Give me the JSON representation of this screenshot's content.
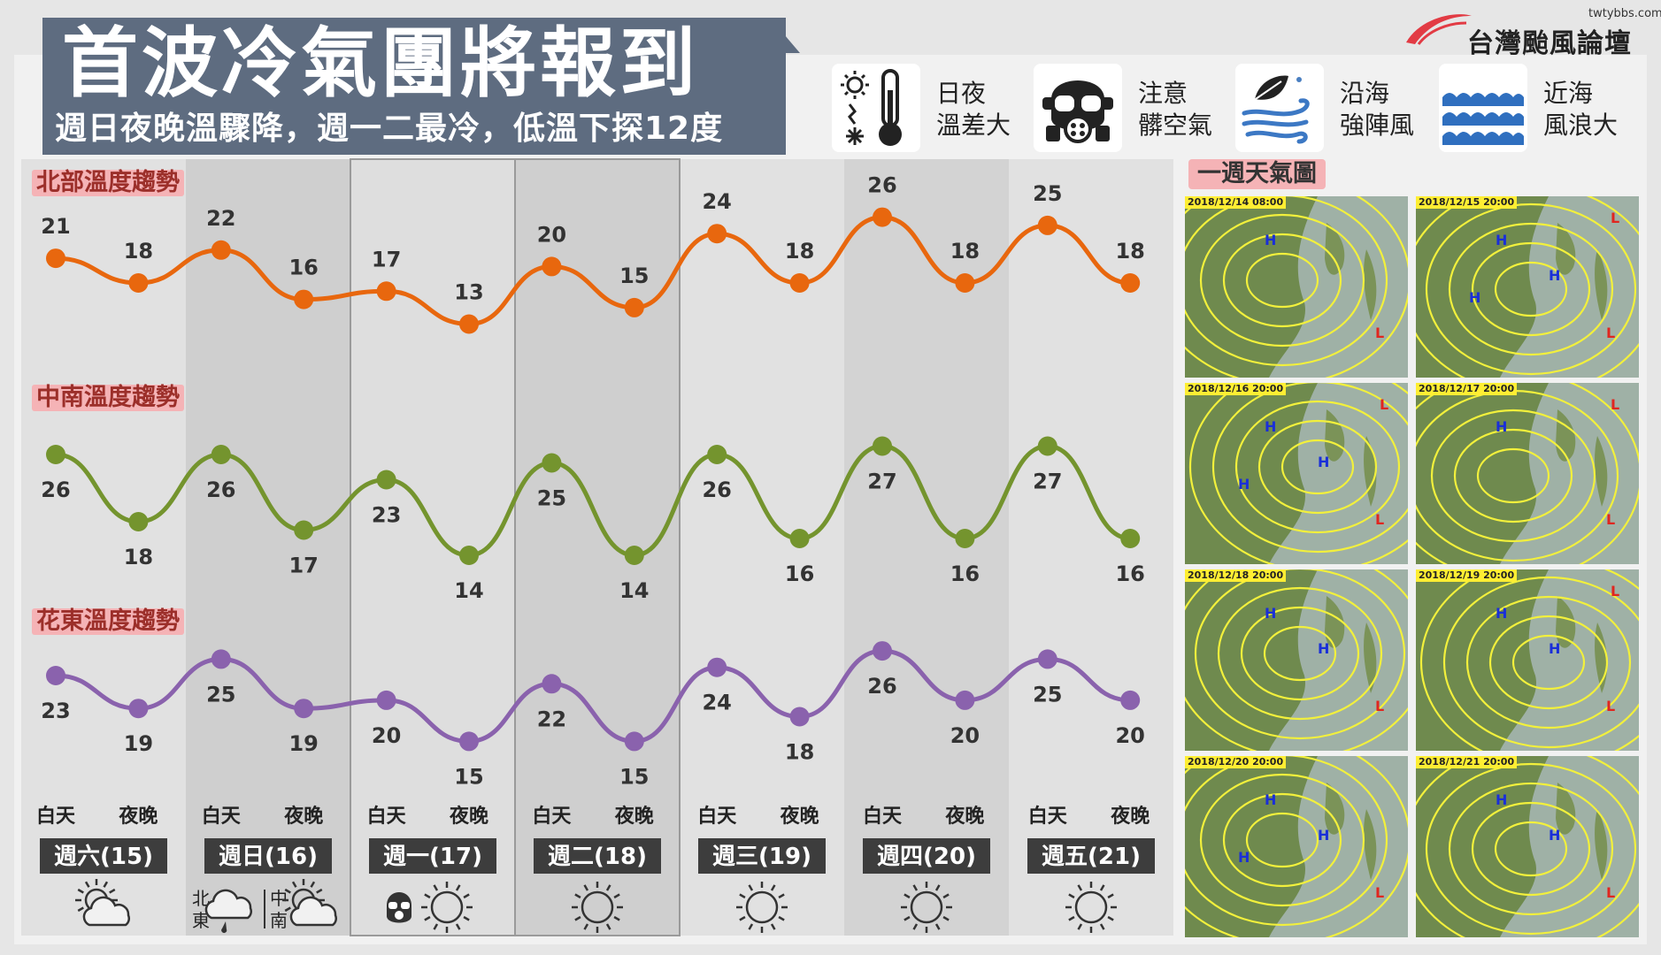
{
  "header": {
    "title": "首波冷氣團將報到",
    "subtitle": "週日夜晚溫驟降，週一二最冷，低溫下探12度",
    "site": "twtybbs.com",
    "logo_name": "台灣颱風論壇"
  },
  "legend": [
    {
      "icon": "thermometer-sun-snow-icon",
      "label_lines": [
        "日夜",
        "溫差大"
      ]
    },
    {
      "icon": "gas-mask-icon",
      "label_lines": [
        "注意",
        "髒空氣"
      ]
    },
    {
      "icon": "wind-leaf-icon",
      "label_lines": [
        "沿海",
        "強陣風"
      ]
    },
    {
      "icon": "waves-icon",
      "label_lines": [
        "近海",
        "風浪大"
      ]
    }
  ],
  "colors": {
    "north": "#e8670e",
    "central_south": "#74942e",
    "east": "#8a62ad",
    "label_pink": "#f5b3b6",
    "header_bg": "#5e6c80"
  },
  "chart_data": {
    "type": "line",
    "categories": [
      "白天",
      "夜晚",
      "白天",
      "夜晚",
      "白天",
      "夜晚",
      "白天",
      "夜晚",
      "白天",
      "夜晚",
      "白天",
      "夜晚",
      "白天",
      "夜晚"
    ],
    "days": [
      "週六(15)",
      "週日(16)",
      "週一(17)",
      "週二(18)",
      "週三(19)",
      "週四(20)",
      "週五(21)"
    ],
    "series": [
      {
        "name": "北部溫度趨勢",
        "values": [
          21,
          18,
          22,
          16,
          17,
          13,
          20,
          15,
          24,
          18,
          26,
          18,
          25,
          18
        ]
      },
      {
        "name": "中南溫度趨勢",
        "values": [
          26,
          18,
          26,
          17,
          23,
          14,
          25,
          14,
          26,
          16,
          27,
          16,
          27,
          16
        ]
      },
      {
        "name": "花東溫度趨勢",
        "values": [
          23,
          19,
          25,
          19,
          20,
          15,
          22,
          15,
          24,
          18,
          26,
          20,
          25,
          20
        ]
      }
    ],
    "day_weather": [
      {
        "icons": [
          "partly-cloudy-icon"
        ]
      },
      {
        "icons": [
          "cloud-rain-icon",
          "partly-cloudy-icon"
        ],
        "region_labels": [
          "北東",
          "中南"
        ]
      },
      {
        "icons": [
          "gas-mask-icon",
          "sun-icon"
        ]
      },
      {
        "icons": [
          "sun-icon"
        ]
      },
      {
        "icons": [
          "sun-icon"
        ]
      },
      {
        "icons": [
          "sun-icon"
        ]
      },
      {
        "icons": [
          "sun-icon"
        ]
      }
    ],
    "grid": false,
    "legend": "none"
  },
  "weather_maps": {
    "title": "一週天氣圖",
    "maps": [
      {
        "date": "2018/12/14 08:00",
        "highs": 1,
        "lows": 1
      },
      {
        "date": "2018/12/15 20:00",
        "highs": 3,
        "lows": 2
      },
      {
        "date": "2018/12/16 20:00",
        "highs": 3,
        "lows": 2
      },
      {
        "date": "2018/12/17 20:00",
        "highs": 1,
        "lows": 2
      },
      {
        "date": "2018/12/18 20:00",
        "highs": 2,
        "lows": 1
      },
      {
        "date": "2018/12/19 20:00",
        "highs": 2,
        "lows": 2
      },
      {
        "date": "2018/12/20 20:00",
        "highs": 3,
        "lows": 1
      },
      {
        "date": "2018/12/21 20:00",
        "highs": 2,
        "lows": 1
      }
    ]
  }
}
